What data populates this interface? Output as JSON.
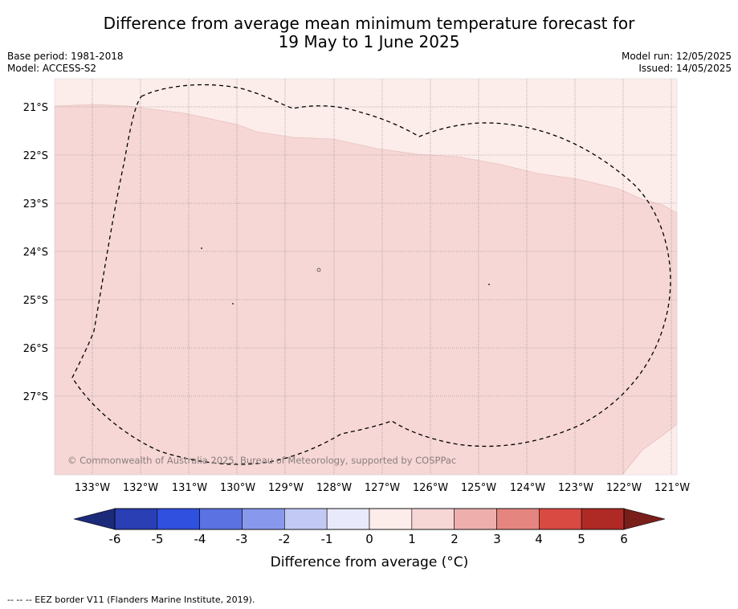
{
  "title_line1": "Difference from average mean minimum temperature forecast for",
  "title_line2": "19 May to 1 June 2025",
  "base_period": "Base period: 1981-2018",
  "model": "Model: ACCESS-S2",
  "model_run": "Model run: 12/05/2025",
  "issued": "Issued: 14/05/2025",
  "copyright": "© Commonwealth of Australia 2025, Bureau of Meteorology, supported by COSPPac",
  "lat_labels": [
    "21°S",
    "22°S",
    "23°S",
    "24°S",
    "25°S",
    "26°S",
    "27°S"
  ],
  "lon_labels": [
    "133°W",
    "132°W",
    "131°W",
    "130°W",
    "129°W",
    "128°W",
    "127°W",
    "126°W",
    "125°W",
    "124°W",
    "123°W",
    "122°W",
    "121°W"
  ],
  "colorbar_ticks": [
    "-6",
    "-5",
    "-4",
    "-3",
    "-2",
    "-1",
    "0",
    "1",
    "2",
    "3",
    "4",
    "5",
    "6"
  ],
  "colorbar_colors": [
    "#2a3fb4",
    "#3050e0",
    "#5a72e2",
    "#8898ec",
    "#c3c9f5",
    "#e8eafb",
    "#fcecea",
    "#f6d7d6",
    "#edaeac",
    "#e5857f",
    "#d94a42",
    "#b02a25"
  ],
  "colorbar_under": "#1c2a7a",
  "colorbar_over": "#7a1e1a",
  "colorbar_label": "Difference from average (°C)",
  "footnote": "--  --  -- EEZ border V11 (Flanders Marine Institute, 2019).",
  "map_colors": {
    "band_0_1": "#fcecea",
    "band_1_2": "#f6d7d6"
  }
}
